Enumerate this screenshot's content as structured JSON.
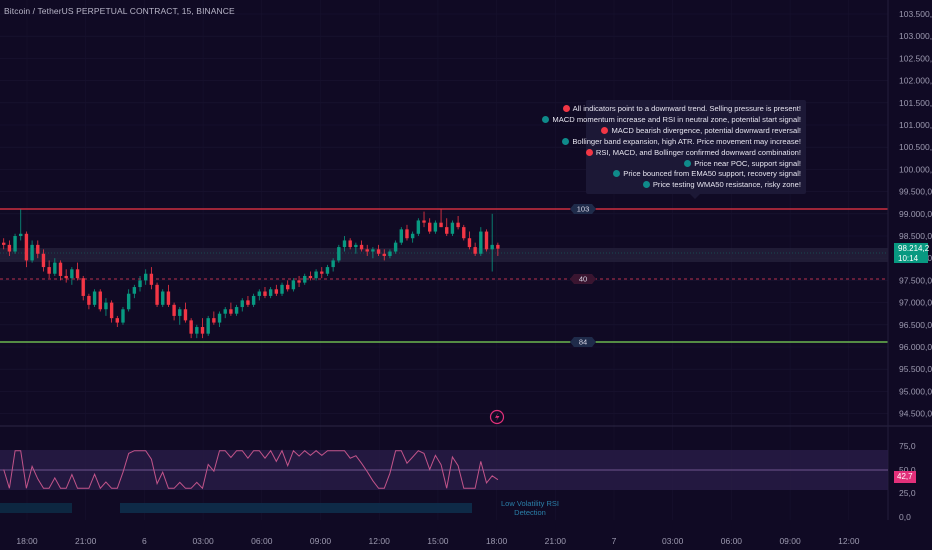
{
  "header": {
    "title": "Bitcoin / TetherUS PERPETUAL CONTRACT, 15, BINANCE"
  },
  "price_axis": {
    "labels": [
      "103.500,0",
      "103.000,0",
      "102.500,0",
      "102.000,0",
      "101.500,0",
      "101.000,0",
      "100.500,0",
      "100.000,0",
      "99.500,0",
      "99.000,0",
      "98.500,0",
      "98.000,0",
      "97.500,0",
      "97.000,0",
      "96.500,0",
      "96.000,0",
      "95.500,0",
      "95.000,0",
      "94.500,0"
    ],
    "current_price": "98.214,2",
    "countdown": "10:14"
  },
  "rsi_axis": {
    "labels": [
      "75,0",
      "50,0",
      "25,0",
      "0,0"
    ],
    "current": "42,7"
  },
  "time_axis": {
    "labels": [
      "18:00",
      "21:00",
      "6",
      "03:00",
      "06:00",
      "09:00",
      "12:00",
      "15:00",
      "18:00",
      "21:00",
      "7",
      "03:00",
      "06:00",
      "09:00",
      "12:00"
    ]
  },
  "signals_panel": {
    "rows": [
      {
        "color": "red",
        "text": "All indicators point to a downward trend. Selling pressure is present!"
      },
      {
        "color": "teal",
        "text": "MACD momentum increase and RSI in neutral zone, potential start signal!"
      },
      {
        "color": "red",
        "text": "MACD bearish divergence, potential downward reversal!"
      },
      {
        "color": "teal",
        "text": "Bollinger band expansion, high ATR. Price movement may increase!"
      },
      {
        "color": "red",
        "text": "RSI, MACD, and Bollinger confirmed downward combination!"
      },
      {
        "color": "teal",
        "text": "Price near POC, support signal!"
      },
      {
        "color": "teal",
        "text": "Price bounced from EMA50 support, recovery signal!"
      },
      {
        "color": "teal",
        "text": "Price testing WMA50 resistance, risky zone!"
      }
    ]
  },
  "levels": {
    "resistance_badge": "103",
    "mid_badge": "40",
    "support_badge": "84"
  },
  "rsi_panel": {
    "low_vol_label_1": "Low Volatility RSI",
    "low_vol_label_2": "Detection"
  },
  "colors": {
    "background": "#100a24",
    "bull": "#089981",
    "bear": "#f23645",
    "resistance": "#f23645",
    "support": "#7ed957",
    "rsi_line": "#c2548a"
  },
  "chart_data": {
    "type": "candlestick",
    "title": "Bitcoin / TetherUS PERPETUAL CONTRACT, 15, BINANCE",
    "ylim": [
      94250,
      103750
    ],
    "resistance_level": 99100,
    "support_level": 96050,
    "mid_level": 97550,
    "last_price": 98214.2,
    "candles": [
      [
        98350,
        98450,
        98200,
        98300
      ],
      [
        98300,
        98400,
        98050,
        98150
      ],
      [
        98150,
        98550,
        98100,
        98500
      ],
      [
        98500,
        99100,
        98400,
        98550
      ],
      [
        98550,
        98600,
        97800,
        97950
      ],
      [
        97950,
        98400,
        97900,
        98300
      ],
      [
        98300,
        98400,
        98000,
        98100
      ],
      [
        98100,
        98200,
        97700,
        97800
      ],
      [
        97800,
        97950,
        97550,
        97650
      ],
      [
        97650,
        98000,
        97600,
        97900
      ],
      [
        97900,
        97950,
        97500,
        97600
      ],
      [
        97600,
        97750,
        97450,
        97550
      ],
      [
        97550,
        97800,
        97400,
        97750
      ],
      [
        97750,
        97900,
        97500,
        97550
      ],
      [
        97550,
        97600,
        97050,
        97150
      ],
      [
        97150,
        97200,
        96850,
        96950
      ],
      [
        96950,
        97300,
        96900,
        97250
      ],
      [
        97250,
        97300,
        96800,
        96850
      ],
      [
        96850,
        97100,
        96700,
        97000
      ],
      [
        97000,
        97050,
        96550,
        96650
      ],
      [
        96650,
        96700,
        96450,
        96550
      ],
      [
        96550,
        96900,
        96500,
        96850
      ],
      [
        96850,
        97300,
        96800,
        97200
      ],
      [
        97200,
        97400,
        97100,
        97350
      ],
      [
        97350,
        97600,
        97250,
        97500
      ],
      [
        97500,
        97750,
        97400,
        97650
      ],
      [
        97650,
        97800,
        97300,
        97400
      ],
      [
        97400,
        97450,
        96900,
        96950
      ],
      [
        96950,
        97300,
        96900,
        97250
      ],
      [
        97250,
        97400,
        96900,
        96950
      ],
      [
        96950,
        97000,
        96600,
        96700
      ],
      [
        96700,
        96900,
        96500,
        96850
      ],
      [
        96850,
        97000,
        96550,
        96600
      ],
      [
        96600,
        96650,
        96200,
        96300
      ],
      [
        96300,
        96500,
        96200,
        96450
      ],
      [
        96450,
        96650,
        96200,
        96300
      ],
      [
        96300,
        96700,
        96250,
        96650
      ],
      [
        96650,
        96800,
        96500,
        96550
      ],
      [
        96550,
        96800,
        96450,
        96750
      ],
      [
        96750,
        96900,
        96650,
        96850
      ],
      [
        96850,
        97000,
        96700,
        96750
      ],
      [
        96750,
        96950,
        96700,
        96900
      ],
      [
        96900,
        97100,
        96800,
        97050
      ],
      [
        97050,
        97150,
        96900,
        96950
      ],
      [
        96950,
        97200,
        96900,
        97150
      ],
      [
        97150,
        97300,
        97050,
        97250
      ],
      [
        97250,
        97350,
        97100,
        97150
      ],
      [
        97150,
        97350,
        97100,
        97300
      ],
      [
        97300,
        97400,
        97150,
        97200
      ],
      [
        97200,
        97450,
        97150,
        97400
      ],
      [
        97400,
        97500,
        97250,
        97300
      ],
      [
        97300,
        97550,
        97250,
        97500
      ],
      [
        97500,
        97600,
        97350,
        97450
      ],
      [
        97450,
        97650,
        97400,
        97600
      ],
      [
        97600,
        97700,
        97500,
        97550
      ],
      [
        97550,
        97750,
        97500,
        97700
      ],
      [
        97700,
        97800,
        97550,
        97650
      ],
      [
        97650,
        97850,
        97600,
        97800
      ],
      [
        97800,
        98000,
        97700,
        97950
      ],
      [
        97950,
        98300,
        97900,
        98250
      ],
      [
        98250,
        98500,
        98150,
        98400
      ],
      [
        98400,
        98450,
        98200,
        98250
      ],
      [
        98250,
        98350,
        98100,
        98300
      ],
      [
        98300,
        98400,
        98150,
        98200
      ],
      [
        98200,
        98300,
        98050,
        98150
      ],
      [
        98150,
        98250,
        98000,
        98200
      ],
      [
        98200,
        98300,
        98050,
        98100
      ],
      [
        98100,
        98200,
        97950,
        98050
      ],
      [
        98050,
        98200,
        98000,
        98150
      ],
      [
        98150,
        98400,
        98100,
        98350
      ],
      [
        98350,
        98700,
        98300,
        98650
      ],
      [
        98650,
        98750,
        98400,
        98450
      ],
      [
        98450,
        98600,
        98350,
        98550
      ],
      [
        98550,
        98900,
        98500,
        98850
      ],
      [
        98850,
        99050,
        98700,
        98800
      ],
      [
        98800,
        98900,
        98550,
        98600
      ],
      [
        98600,
        98850,
        98550,
        98800
      ],
      [
        98800,
        99100,
        98700,
        98700
      ],
      [
        98700,
        98900,
        98500,
        98550
      ],
      [
        98550,
        98850,
        98500,
        98800
      ],
      [
        98800,
        98950,
        98650,
        98700
      ],
      [
        98700,
        98750,
        98400,
        98450
      ],
      [
        98450,
        98600,
        98200,
        98250
      ],
      [
        98250,
        98350,
        98050,
        98100
      ],
      [
        98100,
        98700,
        98050,
        98600
      ],
      [
        98600,
        98650,
        98150,
        98200
      ],
      [
        98200,
        99000,
        97700,
        98300
      ],
      [
        98300,
        98350,
        98050,
        98214
      ]
    ]
  }
}
